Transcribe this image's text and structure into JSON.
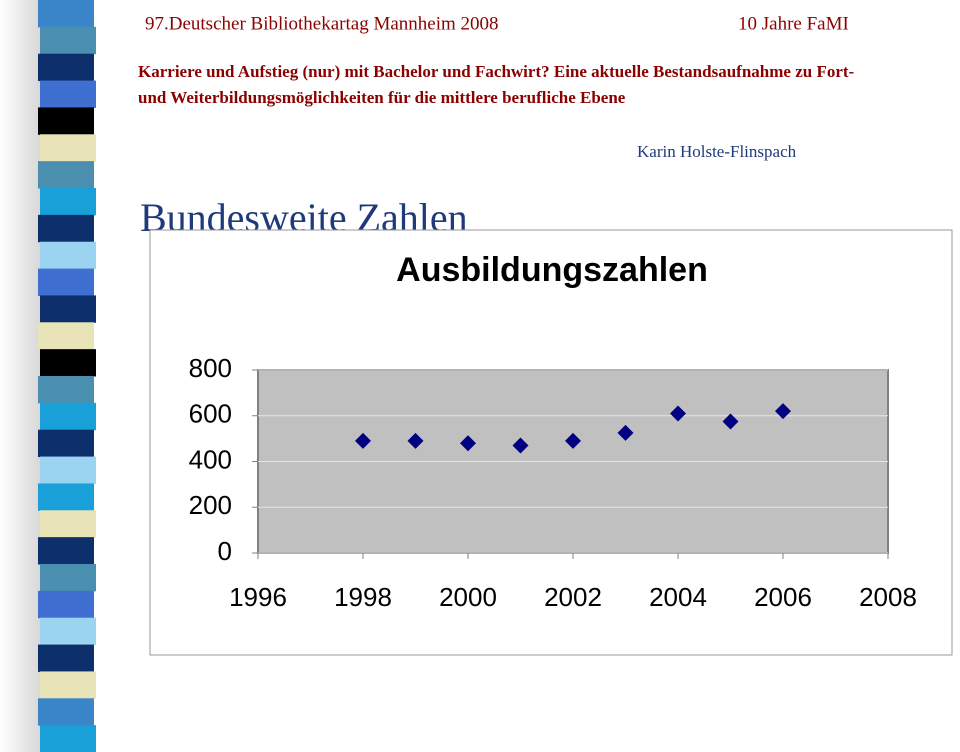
{
  "header": {
    "event": "97.Deutscher Bibliothekartag Mannheim 2008",
    "tag": "10 Jahre FaMI",
    "subtitle": [
      "Karriere und Aufstieg (nur) mit Bachelor und Fachwirt? Eine aktuelle Bestandsaufnahme zu Fort-",
      "und Weiterbildungsmöglichkeiten für die mittlere berufliche Ebene"
    ],
    "author": "Karin Holste-Flinspach",
    "heading": "Bundesweite Zahlen"
  },
  "chart_data": {
    "type": "scatter",
    "title": "Ausbildungszahlen",
    "color": "#000080",
    "x": [
      1998,
      1999,
      2000,
      2001,
      2002,
      2003,
      2004,
      2005,
      2006
    ],
    "values": [
      490,
      490,
      480,
      470,
      490,
      525,
      610,
      575,
      620
    ],
    "xlim": [
      1996,
      2008
    ],
    "xticks": [
      1996,
      1998,
      2000,
      2002,
      2004,
      2006,
      2008
    ],
    "ylim": [
      0,
      800
    ],
    "yticks": [
      0,
      200,
      400,
      600,
      800
    ],
    "grid": true
  }
}
